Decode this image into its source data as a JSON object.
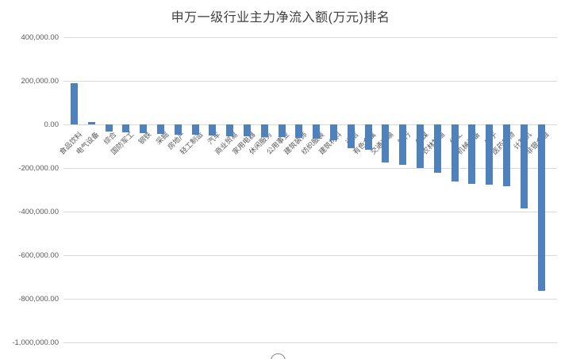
{
  "title": "申万一级行业主力净流入额(万元)排名",
  "colors": {
    "bar": "#4f81bd",
    "gridline": "#d9d9d9",
    "axis_text": "#595959",
    "title_text": "#3f3f3f",
    "background": "#ffffff"
  },
  "chart_data": {
    "type": "bar",
    "title": "申万一级行业主力净流入额(万元)排名",
    "xlabel": "",
    "ylabel": "",
    "ylim": [
      -1000000,
      400000
    ],
    "grid": true,
    "legend": false,
    "bar_color": "#4f81bd",
    "ytick_values": [
      400000,
      200000,
      0,
      -200000,
      -400000,
      -600000,
      -800000,
      -1000000
    ],
    "ytick_labels": [
      "400,000.00",
      "200,000.00",
      "0.00",
      "-200,000.00",
      "-400,000.00",
      "-600,000.00",
      "-800,000.00",
      "-1,000,000.00"
    ],
    "categories": [
      "食品饮料",
      "电气设备",
      "综合",
      "国防军工",
      "钢铁",
      "采掘",
      "房地产",
      "轻工制造",
      "汽车",
      "商业贸易",
      "家用电器",
      "休闲服务",
      "公用事业",
      "建筑装饰",
      "纺织服装",
      "建筑材料",
      "通信",
      "有色金属",
      "交通运输",
      "银行",
      "传媒",
      "农林牧渔",
      "化工",
      "机械设备",
      "电子",
      "医药生物",
      "计算机",
      "非银金融"
    ],
    "values": [
      190000,
      10000,
      -33000,
      -38000,
      -40000,
      -44000,
      -47000,
      -49000,
      -52000,
      -55000,
      -56000,
      -57000,
      -59000,
      -61000,
      -65000,
      -72000,
      -110000,
      -118000,
      -175000,
      -185000,
      -200000,
      -220000,
      -262000,
      -272000,
      -278000,
      -282000,
      -385000,
      -765000
    ]
  }
}
